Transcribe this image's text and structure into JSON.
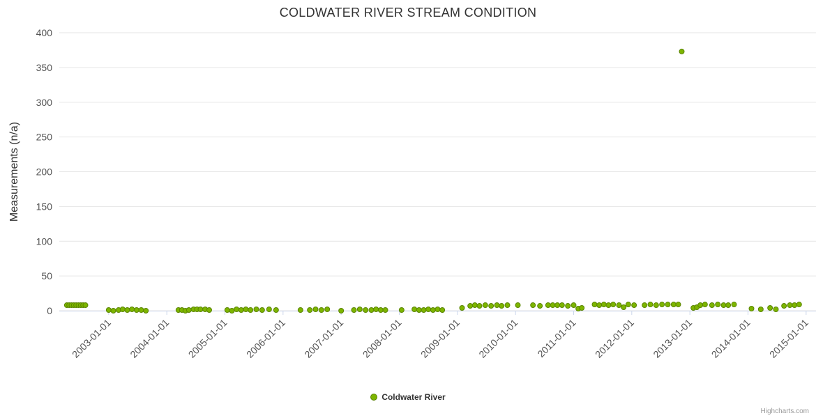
{
  "title": "COLDWATER RIVER STREAM CONDITION",
  "legend": {
    "label": "Coldwater River"
  },
  "credits": "Highcharts.com",
  "colors": {
    "point_fill": "#7db500",
    "point_stroke": "#5a8400",
    "gridline": "#e6e6e6",
    "axis_line": "#ccd6eb",
    "tick_label": "#555555",
    "axis_title": "#333333"
  },
  "y_axis": {
    "label": "Measurements (n/a)",
    "ticks": [
      0,
      50,
      100,
      150,
      200,
      250,
      300,
      350,
      400
    ]
  },
  "x_axis": {
    "ticks": [
      {
        "x": 2003,
        "label": "2003-01-01"
      },
      {
        "x": 2004,
        "label": "2004-01-01"
      },
      {
        "x": 2005,
        "label": "2005-01-01"
      },
      {
        "x": 2006,
        "label": "2006-01-01"
      },
      {
        "x": 2007,
        "label": "2007-01-01"
      },
      {
        "x": 2008,
        "label": "2008-01-01"
      },
      {
        "x": 2009,
        "label": "2009-01-01"
      },
      {
        "x": 2010,
        "label": "2010-01-01"
      },
      {
        "x": 2011,
        "label": "2011-01-01"
      },
      {
        "x": 2012,
        "label": "2012-01-01"
      },
      {
        "x": 2013,
        "label": "2013-01-01"
      },
      {
        "x": 2014,
        "label": "2014-01-01"
      },
      {
        "x": 2015,
        "label": "2015-01-01"
      }
    ]
  },
  "chart_data": {
    "type": "scatter",
    "title": "COLDWATER RIVER STREAM CONDITION",
    "xlabel": "",
    "ylabel": "Measurements (n/a)",
    "xlim": [
      2002.15,
      2015.17
    ],
    "ylim": [
      0,
      400
    ],
    "grid": "horizontal",
    "legend_position": "bottom-center",
    "series": [
      {
        "name": "Coldwater River",
        "points": [
          [
            2002.28,
            8
          ],
          [
            2002.32,
            8
          ],
          [
            2002.36,
            8
          ],
          [
            2002.4,
            8
          ],
          [
            2002.44,
            8
          ],
          [
            2002.48,
            8
          ],
          [
            2002.52,
            8
          ],
          [
            2002.56,
            8
          ],
          [
            2002.6,
            8
          ],
          [
            2003.0,
            1
          ],
          [
            2003.08,
            0
          ],
          [
            2003.17,
            1
          ],
          [
            2003.24,
            2
          ],
          [
            2003.32,
            1
          ],
          [
            2003.4,
            2
          ],
          [
            2003.48,
            1
          ],
          [
            2003.56,
            1
          ],
          [
            2003.64,
            0
          ],
          [
            2004.2,
            1
          ],
          [
            2004.26,
            1
          ],
          [
            2004.32,
            0
          ],
          [
            2004.38,
            1
          ],
          [
            2004.46,
            2
          ],
          [
            2004.52,
            2
          ],
          [
            2004.58,
            2
          ],
          [
            2004.66,
            2
          ],
          [
            2004.73,
            1
          ],
          [
            2005.04,
            1
          ],
          [
            2005.12,
            0
          ],
          [
            2005.2,
            2
          ],
          [
            2005.28,
            1
          ],
          [
            2005.36,
            2
          ],
          [
            2005.44,
            1
          ],
          [
            2005.54,
            2
          ],
          [
            2005.64,
            1
          ],
          [
            2005.76,
            2
          ],
          [
            2005.88,
            1
          ],
          [
            2006.3,
            1
          ],
          [
            2006.46,
            1
          ],
          [
            2006.56,
            2
          ],
          [
            2006.66,
            1
          ],
          [
            2006.76,
            2
          ],
          [
            2007.0,
            0
          ],
          [
            2007.22,
            1
          ],
          [
            2007.32,
            2
          ],
          [
            2007.42,
            1
          ],
          [
            2007.52,
            1
          ],
          [
            2007.6,
            2
          ],
          [
            2007.68,
            1
          ],
          [
            2007.76,
            1
          ],
          [
            2008.04,
            1
          ],
          [
            2008.26,
            2
          ],
          [
            2008.34,
            1
          ],
          [
            2008.42,
            1
          ],
          [
            2008.5,
            2
          ],
          [
            2008.58,
            1
          ],
          [
            2008.66,
            2
          ],
          [
            2008.74,
            1
          ],
          [
            2009.08,
            4
          ],
          [
            2009.22,
            7
          ],
          [
            2009.3,
            8
          ],
          [
            2009.38,
            7
          ],
          [
            2009.48,
            8
          ],
          [
            2009.58,
            7
          ],
          [
            2009.68,
            8
          ],
          [
            2009.76,
            7
          ],
          [
            2009.86,
            8
          ],
          [
            2010.04,
            8
          ],
          [
            2010.3,
            8
          ],
          [
            2010.42,
            7
          ],
          [
            2010.56,
            8
          ],
          [
            2010.64,
            8
          ],
          [
            2010.72,
            8
          ],
          [
            2010.8,
            8
          ],
          [
            2010.9,
            7
          ],
          [
            2011.0,
            8
          ],
          [
            2011.08,
            3
          ],
          [
            2011.14,
            4
          ],
          [
            2011.36,
            9
          ],
          [
            2011.44,
            8
          ],
          [
            2011.52,
            9
          ],
          [
            2011.6,
            8
          ],
          [
            2011.68,
            9
          ],
          [
            2011.78,
            8
          ],
          [
            2011.86,
            5
          ],
          [
            2011.94,
            9
          ],
          [
            2012.04,
            8
          ],
          [
            2012.22,
            8
          ],
          [
            2012.32,
            9
          ],
          [
            2012.42,
            8
          ],
          [
            2012.52,
            9
          ],
          [
            2012.62,
            9
          ],
          [
            2012.72,
            9
          ],
          [
            2012.8,
            9
          ],
          [
            2012.86,
            373
          ],
          [
            2013.06,
            4
          ],
          [
            2013.12,
            5
          ],
          [
            2013.18,
            8
          ],
          [
            2013.26,
            9
          ],
          [
            2013.38,
            8
          ],
          [
            2013.48,
            9
          ],
          [
            2013.58,
            8
          ],
          [
            2013.66,
            8
          ],
          [
            2013.76,
            9
          ],
          [
            2014.06,
            3
          ],
          [
            2014.22,
            2
          ],
          [
            2014.38,
            4
          ],
          [
            2014.48,
            2
          ],
          [
            2014.62,
            7
          ],
          [
            2014.72,
            8
          ],
          [
            2014.8,
            8
          ],
          [
            2014.88,
            9
          ]
        ]
      }
    ]
  }
}
